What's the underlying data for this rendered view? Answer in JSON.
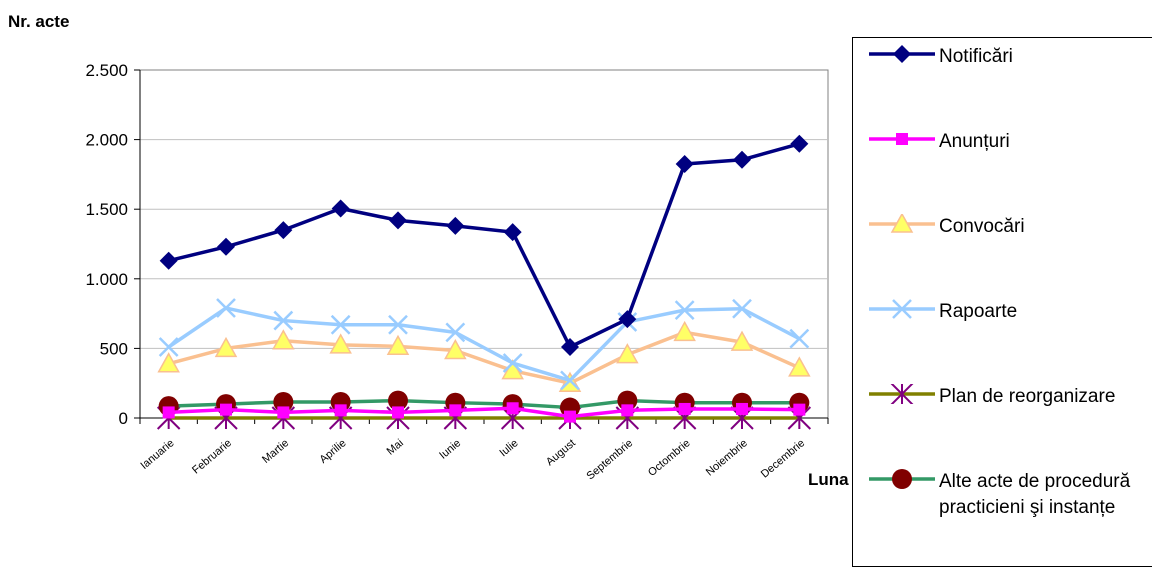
{
  "chart_data": {
    "type": "line",
    "title": "",
    "ylabel": "Nr. acte",
    "xlabel": "Luna",
    "ylim": [
      0,
      2500
    ],
    "yticks": [
      0,
      500,
      1000,
      1500,
      2000,
      2500
    ],
    "ytick_labels": [
      "0",
      "500",
      "1.000",
      "1.500",
      "2.000",
      "2.500"
    ],
    "grid": true,
    "legend_position": "right",
    "categories": [
      "Ianuarie",
      "Februarie",
      "Martie",
      "Aprilie",
      "Mai",
      "Iunie",
      "Iulie",
      "August",
      "Septembrie",
      "Octombrie",
      "Noiembrie",
      "Decembrie"
    ],
    "series": [
      {
        "name": "Notificări",
        "color": "#000080",
        "marker": "diamond",
        "values": [
          1130,
          1230,
          1350,
          1505,
          1420,
          1380,
          1335,
          510,
          710,
          1825,
          1855,
          1970
        ]
      },
      {
        "name": "Anunțuri",
        "color": "#ff00ff",
        "marker": "square",
        "values": [
          40,
          60,
          40,
          55,
          40,
          55,
          70,
          10,
          55,
          65,
          65,
          60
        ]
      },
      {
        "name": "Convocări",
        "color": "#fac090",
        "marker": "triangle",
        "marker_fill": "#ffff66",
        "values": [
          390,
          500,
          555,
          525,
          515,
          485,
          340,
          250,
          455,
          615,
          545,
          360
        ]
      },
      {
        "name": "Rapoarte",
        "color": "#99ccff",
        "marker": "x",
        "values": [
          510,
          790,
          700,
          670,
          670,
          615,
          395,
          270,
          690,
          775,
          785,
          570
        ]
      },
      {
        "name": "Plan de reorganizare",
        "color": "#808000",
        "marker": "star",
        "marker_color": "#800080",
        "values": [
          0,
          0,
          0,
          0,
          0,
          0,
          0,
          0,
          0,
          0,
          0,
          0
        ]
      },
      {
        "name": "Alte acte de procedură practicieni şi instanțe",
        "color": "#339966",
        "marker": "circle",
        "marker_color": "#800000",
        "values": [
          85,
          100,
          115,
          115,
          125,
          110,
          100,
          75,
          125,
          110,
          110,
          110
        ]
      }
    ]
  }
}
